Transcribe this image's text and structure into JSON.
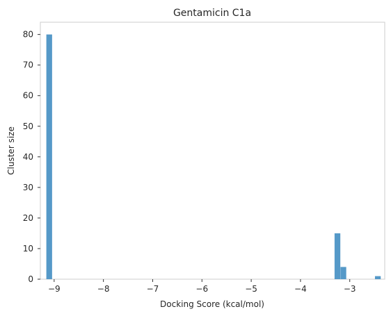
{
  "chart_data": {
    "type": "bar",
    "title": "Gentamicin C1a",
    "xlabel": "Docking Score (kcal/mol)",
    "ylabel": "Cluster size",
    "xlim": [
      -9.28,
      -2.29
    ],
    "ylim": [
      0,
      84
    ],
    "xticks": [
      -9,
      -8,
      -7,
      -6,
      -5,
      -4,
      -3
    ],
    "xtick_labels": [
      "−9",
      "−8",
      "−7",
      "−6",
      "−5",
      "−4",
      "−3"
    ],
    "yticks": [
      0,
      10,
      20,
      30,
      40,
      50,
      60,
      70,
      80
    ],
    "ytick_labels": [
      "0",
      "10",
      "20",
      "30",
      "40",
      "50",
      "60",
      "70",
      "80"
    ],
    "bin_width": 0.117,
    "x": [
      -9.1,
      -3.25,
      -3.13,
      -2.43
    ],
    "values": [
      80,
      15,
      4,
      1
    ],
    "bar_color": "#5599c8",
    "grid": false
  }
}
